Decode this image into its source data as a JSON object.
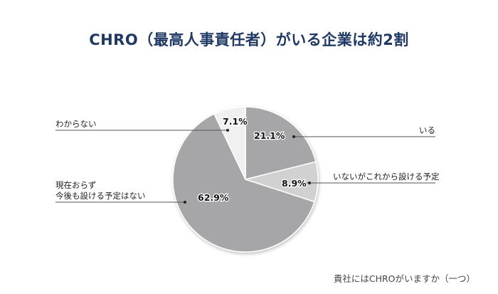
{
  "title": "CHRO（最高人事責任者）がいる企業は約2割",
  "footnote": "貴社にはCHROがいますか（一つ）",
  "colors": {
    "title": "#1f3864",
    "dark_slice": "#a6a6a9",
    "mid_slice": "#d1d1d1",
    "light_slice": "#f0f0f0",
    "leader": "#555555"
  },
  "labels": {
    "iru": "いる",
    "planned": "いないがこれから設ける予定",
    "none_line1": "現在おらず",
    "none_line2": "今後も設ける予定はない",
    "unknown": "わからない"
  },
  "pct_labels": {
    "iru": "21.1%",
    "planned": "8.9%",
    "none": "62.9%",
    "unknown": "7.1%"
  },
  "chart_data": {
    "type": "pie",
    "title": "CHRO（最高人事責任者）がいる企業は約2割",
    "question": "貴社にはCHROがいますか（一つ）",
    "start_angle": "12 o'clock, clockwise",
    "categories": [
      "いる",
      "いないがこれから設ける予定",
      "現在おらず今後も設ける予定はない",
      "わからない"
    ],
    "values": [
      21.1,
      8.9,
      62.9,
      7.1
    ],
    "unit": "%",
    "legend": "leader-line labels"
  }
}
